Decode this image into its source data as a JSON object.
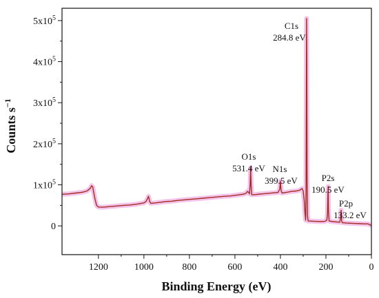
{
  "chart_data": {
    "type": "line",
    "title": "",
    "xlabel": "Binding Energy (eV)",
    "ylabel_main": "Counts s",
    "ylabel_sup": "−1",
    "x_reversed": true,
    "xlim": [
      1360,
      0
    ],
    "ylim": [
      -70000,
      530000
    ],
    "x_ticks": [
      {
        "value": 1200,
        "label": "1200"
      },
      {
        "value": 1000,
        "label": "1000"
      },
      {
        "value": 800,
        "label": "800"
      },
      {
        "value": 600,
        "label": "600"
      },
      {
        "value": 400,
        "label": "400"
      },
      {
        "value": 200,
        "label": "200"
      },
      {
        "value": 0,
        "label": "0"
      }
    ],
    "y_ticks": [
      {
        "value": 0,
        "base": "0",
        "exp": ""
      },
      {
        "value": 100000,
        "base": "1x10",
        "exp": "5"
      },
      {
        "value": 200000,
        "base": "2x10",
        "exp": "5"
      },
      {
        "value": 300000,
        "base": "3x10",
        "exp": "5"
      },
      {
        "value": 400000,
        "base": "4x10",
        "exp": "5"
      },
      {
        "value": 500000,
        "base": "5x10",
        "exp": "5"
      }
    ],
    "grid": false,
    "series_color": "#a32b22",
    "highlight_color": "#f2b8e6",
    "series": [
      {
        "points": [
          [
            1360,
            77000
          ],
          [
            1330,
            78000
          ],
          [
            1300,
            80000
          ],
          [
            1270,
            82000
          ],
          [
            1250,
            85000
          ],
          [
            1235,
            92000
          ],
          [
            1230,
            98000
          ],
          [
            1225,
            95000
          ],
          [
            1222,
            85000
          ],
          [
            1215,
            65000
          ],
          [
            1208,
            50000
          ],
          [
            1200,
            46000
          ],
          [
            1180,
            45500
          ],
          [
            1150,
            47000
          ],
          [
            1120,
            48500
          ],
          [
            1090,
            50000
          ],
          [
            1060,
            51000
          ],
          [
            1030,
            53000
          ],
          [
            1000,
            56000
          ],
          [
            990,
            60000
          ],
          [
            983,
            68000
          ],
          [
            980,
            72000
          ],
          [
            978,
            68000
          ],
          [
            975,
            60000
          ],
          [
            970,
            55000
          ],
          [
            950,
            56000
          ],
          [
            920,
            58000
          ],
          [
            900,
            59500
          ],
          [
            880,
            60000
          ],
          [
            850,
            62000
          ],
          [
            820,
            63500
          ],
          [
            800,
            64500
          ],
          [
            770,
            66000
          ],
          [
            740,
            67500
          ],
          [
            710,
            69000
          ],
          [
            680,
            70500
          ],
          [
            650,
            72000
          ],
          [
            620,
            73000
          ],
          [
            600,
            74500
          ],
          [
            580,
            76000
          ],
          [
            560,
            77500
          ],
          [
            550,
            80000
          ],
          [
            545,
            84000
          ],
          [
            540,
            82000
          ],
          [
            536,
            78000
          ],
          [
            533,
            100000
          ],
          [
            531,
            141000
          ],
          [
            529,
            98000
          ],
          [
            526,
            76000
          ],
          [
            515,
            76000
          ],
          [
            490,
            77500
          ],
          [
            470,
            78500
          ],
          [
            450,
            79500
          ],
          [
            430,
            80500
          ],
          [
            410,
            81500
          ],
          [
            403,
            90000
          ],
          [
            400,
            109000
          ],
          [
            397,
            86000
          ],
          [
            393,
            80000
          ],
          [
            370,
            82000
          ],
          [
            350,
            84000
          ],
          [
            330,
            85000
          ],
          [
            315,
            87000
          ],
          [
            305,
            91000
          ],
          [
            300,
            85000
          ],
          [
            295,
            60000
          ],
          [
            292,
            30000
          ],
          [
            289,
            14000
          ],
          [
            287,
            100000
          ],
          [
            285,
            505000
          ],
          [
            284,
            420000
          ],
          [
            283,
            120000
          ],
          [
            281,
            24000
          ],
          [
            278,
            12000
          ],
          [
            260,
            11500
          ],
          [
            240,
            11000
          ],
          [
            220,
            10500
          ],
          [
            205,
            11000
          ],
          [
            196,
            14000
          ],
          [
            193,
            30000
          ],
          [
            191,
            80000
          ],
          [
            190,
            96000
          ],
          [
            189,
            40000
          ],
          [
            186,
            12000
          ],
          [
            170,
            10500
          ],
          [
            150,
            9500
          ],
          [
            140,
            9000
          ],
          [
            136,
            16000
          ],
          [
            134,
            34000
          ],
          [
            133,
            38000
          ],
          [
            131,
            12000
          ],
          [
            128,
            8000
          ],
          [
            110,
            7000
          ],
          [
            90,
            6500
          ],
          [
            70,
            6000
          ],
          [
            50,
            5500
          ],
          [
            30,
            5000
          ],
          [
            15,
            5000
          ],
          [
            8,
            3000
          ],
          [
            3,
            1500
          ],
          [
            0,
            1000
          ]
        ]
      }
    ],
    "annotations": [
      {
        "label": "C1s",
        "value": "284.8 eV"
      },
      {
        "label": "O1s",
        "value": "531.4 eV"
      },
      {
        "label": "N1s",
        "value": "399.5 eV"
      },
      {
        "label": "P2s",
        "value": "190.5 eV"
      },
      {
        "label": "P2p",
        "value": "133.2 eV"
      }
    ]
  }
}
